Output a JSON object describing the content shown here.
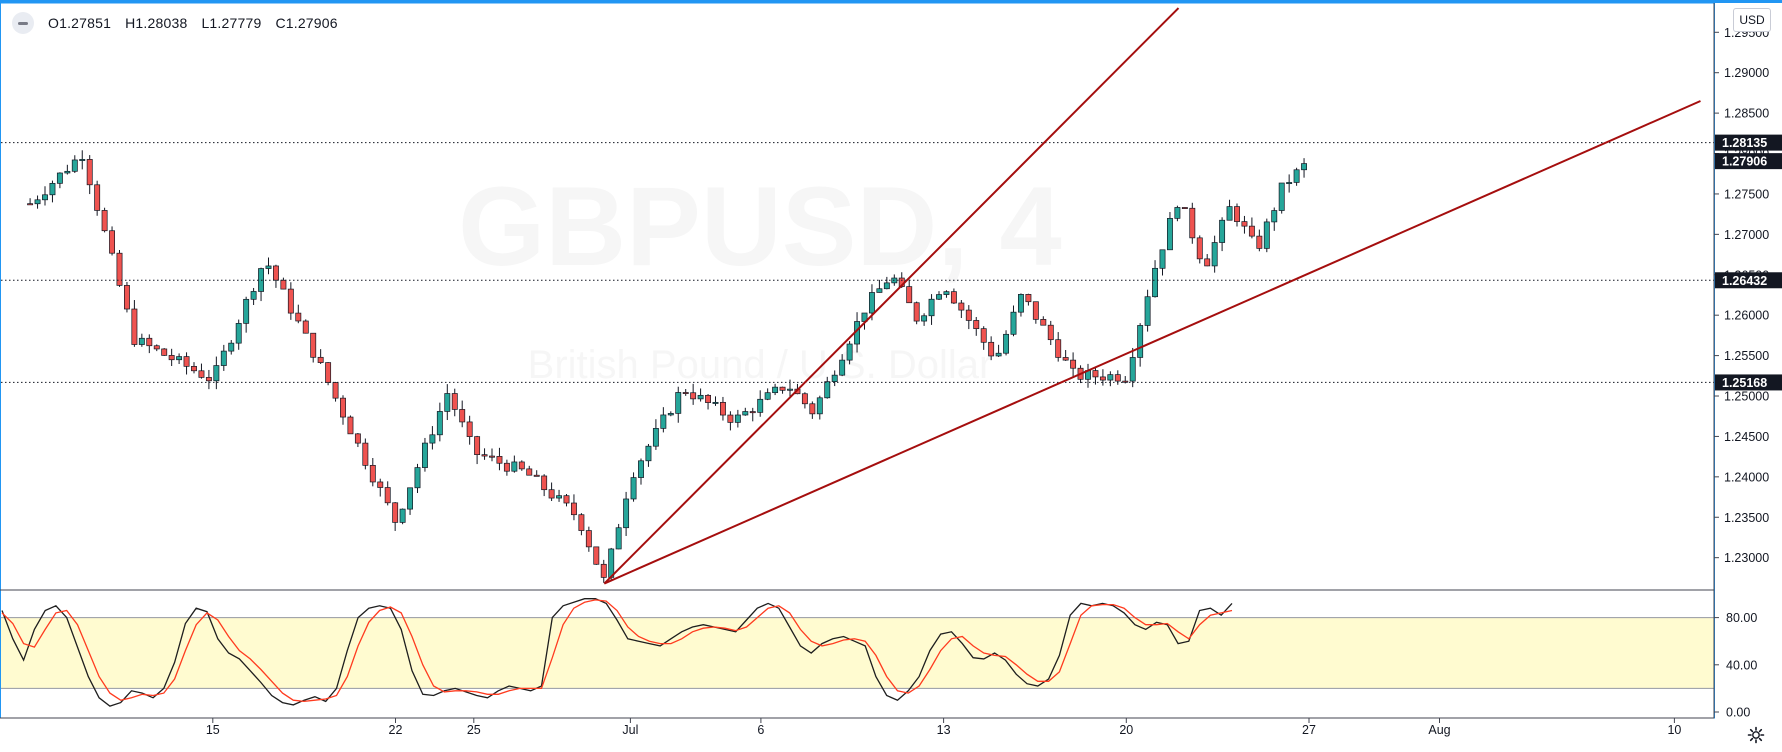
{
  "legend": {
    "open": "O1.27851",
    "high": "H1.28038",
    "low": "L1.27779",
    "close": "C1.27906"
  },
  "currency_label": "USD",
  "watermark": {
    "symbol": "GBPUSD, 4",
    "description": "British Pound / U.S. Dollar"
  },
  "colors": {
    "up": "#26a69a",
    "down": "#ef5350",
    "trendline": "#a50e0e",
    "stoch_k": "#1e1e1e",
    "stoch_d": "#ff3b1f",
    "stoch_band": "#fffbd0",
    "accent": "#2196f3"
  },
  "chart_data": [
    {
      "type": "candlestick",
      "title": "",
      "y_axis": {
        "min": 1.226,
        "max": 1.2985,
        "ticks": [
          "1.29500",
          "1.29000",
          "1.28500",
          "1.28000",
          "1.27500",
          "1.27000",
          "1.26500",
          "1.26000",
          "1.25500",
          "1.25000",
          "1.24500",
          "1.24000",
          "1.23500",
          "1.23000"
        ]
      },
      "x_axis": {
        "labels": [
          {
            "label": "15",
            "date": "2020-06-15"
          },
          {
            "label": "22",
            "date": "2020-06-22"
          },
          {
            "label": "25",
            "date": "2020-06-25"
          },
          {
            "label": "Jul",
            "date": "2020-07-01"
          },
          {
            "label": "6",
            "date": "2020-07-06"
          },
          {
            "label": "13",
            "date": "2020-07-13"
          },
          {
            "label": "20",
            "date": "2020-07-20"
          },
          {
            "label": "27",
            "date": "2020-07-27"
          },
          {
            "label": "Aug",
            "date": "2020-08-01"
          },
          {
            "label": "10",
            "date": "2020-08-10"
          }
        ]
      },
      "price_lines": [
        {
          "value": 1.28135,
          "label": "1.28135"
        },
        {
          "value": 1.26432,
          "label": "1.26432"
        },
        {
          "value": 1.25168,
          "label": "1.25168"
        }
      ],
      "last_price": {
        "value": 1.27906,
        "label": "1.27906"
      },
      "trendlines": [
        {
          "from": {
            "date": "2020-06-30",
            "price": 1.2268
          },
          "to": {
            "date": "2020-07-22",
            "price": 1.298
          }
        },
        {
          "from": {
            "date": "2020-06-30",
            "price": 1.2268
          },
          "to": {
            "date": "2020-08-11",
            "price": 1.2865
          }
        }
      ],
      "anchor": {
        "pattern": "N1",
        "note": "path is generated from the high/low extremes below"
      },
      "pivots": [
        {
          "date": "2020-06-08",
          "price": 1.2738
        },
        {
          "date": "2020-06-10",
          "price": 1.28
        },
        {
          "date": "2020-06-12",
          "price": 1.257
        },
        {
          "date": "2020-06-15",
          "price": 1.252
        },
        {
          "date": "2020-06-17",
          "price": 1.267
        },
        {
          "date": "2020-06-19",
          "price": 1.2545
        },
        {
          "date": "2020-06-21",
          "price": 1.241
        },
        {
          "date": "2020-06-22",
          "price": 1.2345
        },
        {
          "date": "2020-06-24",
          "price": 1.2505
        },
        {
          "date": "2020-06-25",
          "price": 1.243
        },
        {
          "date": "2020-06-27",
          "price": 1.2405
        },
        {
          "date": "2020-06-29",
          "price": 1.235
        },
        {
          "date": "2020-06-30",
          "price": 1.227
        },
        {
          "date": "2020-07-01",
          "price": 1.24
        },
        {
          "date": "2020-07-03",
          "price": 1.251
        },
        {
          "date": "2020-07-05",
          "price": 1.247
        },
        {
          "date": "2020-07-07",
          "price": 1.2515
        },
        {
          "date": "2020-07-08",
          "price": 1.248
        },
        {
          "date": "2020-07-10",
          "price": 1.261
        },
        {
          "date": "2020-07-11",
          "price": 1.265
        },
        {
          "date": "2020-07-12",
          "price": 1.2595
        },
        {
          "date": "2020-07-13",
          "price": 1.264
        },
        {
          "date": "2020-07-15",
          "price": 1.2545
        },
        {
          "date": "2020-07-16",
          "price": 1.2625
        },
        {
          "date": "2020-07-18",
          "price": 1.2525
        },
        {
          "date": "2020-07-20",
          "price": 1.2525
        },
        {
          "date": "2020-07-21",
          "price": 1.265
        },
        {
          "date": "2020-07-22",
          "price": 1.2745
        },
        {
          "date": "2020-07-23",
          "price": 1.266
        },
        {
          "date": "2020-07-24",
          "price": 1.2735
        },
        {
          "date": "2020-07-25",
          "price": 1.268
        },
        {
          "date": "2020-07-26",
          "price": 1.276
        },
        {
          "date": "2020-07-27",
          "price": 1.279
        }
      ]
    },
    {
      "type": "line",
      "title": "",
      "y_axis": {
        "min": 0,
        "max": 100,
        "ticks": [
          "80.00",
          "40.00",
          "0.00"
        ],
        "band": [
          20,
          80
        ]
      },
      "series": [
        {
          "line": "k",
          "values": [
            86,
            62,
            44,
            70,
            86,
            90,
            80,
            55,
            30,
            12,
            5,
            8,
            18,
            16,
            12,
            20,
            42,
            75,
            88,
            85,
            62,
            50,
            45,
            35,
            25,
            14,
            8,
            6,
            10,
            13,
            9,
            20,
            52,
            80,
            88,
            90,
            88,
            70,
            35,
            15,
            14,
            18,
            20,
            17,
            14,
            12,
            18,
            22,
            20,
            18,
            22,
            80,
            90,
            93,
            96,
            96,
            92,
            78,
            62,
            60,
            58,
            56,
            62,
            68,
            72,
            74,
            72,
            70,
            68,
            78,
            88,
            92,
            88,
            72,
            56,
            50,
            58,
            62,
            64,
            60,
            56,
            30,
            14,
            10,
            18,
            30,
            52,
            66,
            68,
            58,
            46,
            45,
            50,
            44,
            32,
            24,
            22,
            28,
            48,
            82,
            92,
            90,
            92,
            90,
            84,
            74,
            70,
            76,
            74,
            58,
            60,
            86,
            88,
            82,
            92
          ]
        },
        {
          "line": "d",
          "values": [
            84,
            75,
            58,
            55,
            70,
            84,
            86,
            74,
            52,
            30,
            16,
            10,
            12,
            15,
            14,
            16,
            28,
            52,
            74,
            84,
            78,
            64,
            52,
            45,
            36,
            26,
            16,
            10,
            9,
            10,
            11,
            14,
            30,
            56,
            76,
            86,
            89,
            84,
            64,
            40,
            22,
            17,
            18,
            18,
            17,
            15,
            15,
            18,
            20,
            20,
            20,
            46,
            74,
            88,
            93,
            95,
            94,
            86,
            72,
            64,
            60,
            58,
            58,
            62,
            68,
            71,
            72,
            71,
            69,
            72,
            80,
            88,
            90,
            84,
            70,
            60,
            56,
            58,
            61,
            62,
            60,
            48,
            30,
            18,
            16,
            22,
            36,
            52,
            62,
            64,
            56,
            50,
            48,
            47,
            40,
            32,
            26,
            26,
            34,
            58,
            82,
            90,
            91,
            91,
            88,
            80,
            74,
            74,
            75,
            68,
            62,
            74,
            82,
            84,
            86
          ]
        }
      ]
    }
  ]
}
